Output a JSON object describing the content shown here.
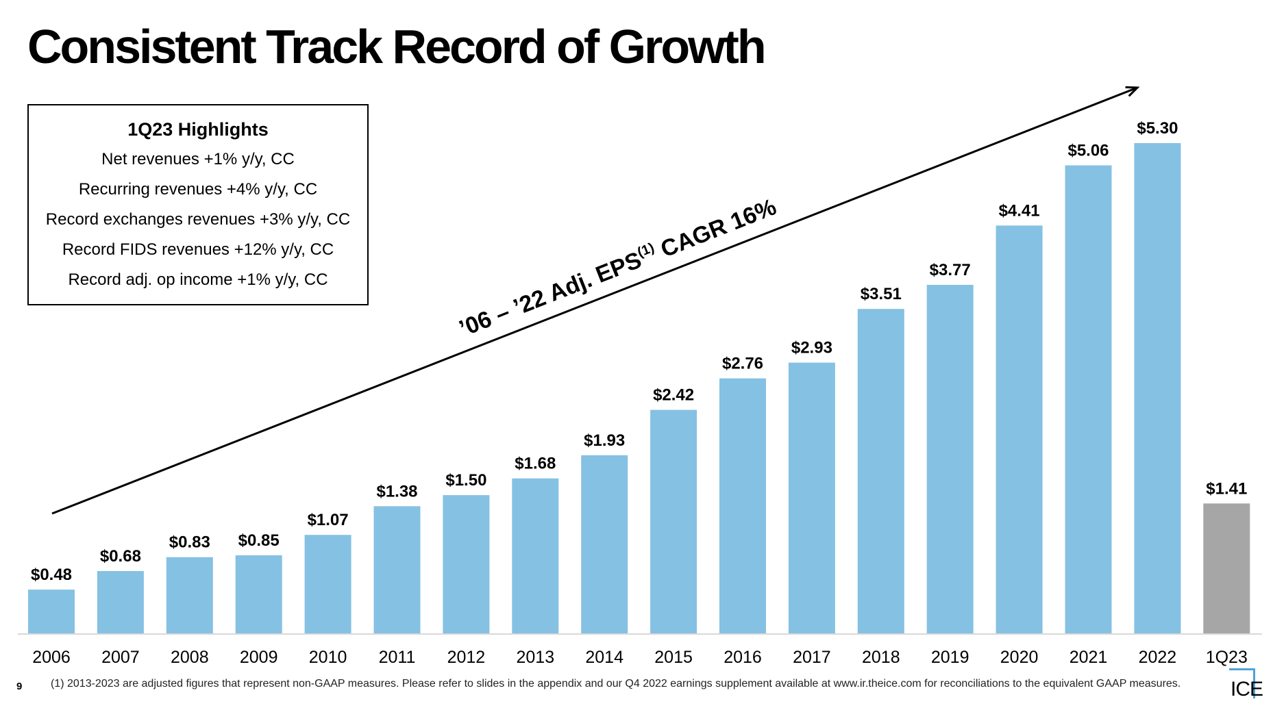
{
  "title": "Consistent Track Record of Growth",
  "highlights": {
    "title": "1Q23 Highlights",
    "items": [
      "Net revenues +1% y/y, CC",
      "Recurring revenues +4% y/y, CC",
      "Record exchanges revenues +3% y/y, CC",
      "Record FIDS revenues +12% y/y, CC",
      "Record adj. op income +1% y/y, CC"
    ]
  },
  "chart_data": {
    "type": "bar",
    "categories": [
      "2006",
      "2007",
      "2008",
      "2009",
      "2010",
      "2011",
      "2012",
      "2013",
      "2014",
      "2015",
      "2016",
      "2017",
      "2018",
      "2019",
      "2020",
      "2021",
      "2022",
      "1Q23"
    ],
    "values": [
      0.48,
      0.68,
      0.83,
      0.85,
      1.07,
      1.38,
      1.5,
      1.68,
      1.93,
      2.42,
      2.76,
      2.93,
      3.51,
      3.77,
      4.41,
      5.06,
      5.3,
      1.41
    ],
    "labels": [
      "$0.48",
      "$0.68",
      "$0.83",
      "$0.85",
      "$1.07",
      "$1.38",
      "$1.50",
      "$1.68",
      "$1.93",
      "$2.42",
      "$2.76",
      "$2.93",
      "$3.51",
      "$3.77",
      "$4.41",
      "$5.06",
      "$5.30",
      "$1.41"
    ],
    "colors": {
      "annual": "#85c1e3",
      "quarter": "#a6a6a6"
    },
    "annotation": {
      "main": "’06 – ’22 Adj. EPS",
      "sup": "(1)",
      "tail": " CAGR 16%"
    },
    "ylim": [
      0,
      5.3
    ],
    "grid": false,
    "legend": "none"
  },
  "page_number": "9",
  "footnote": "(1) 2013-2023 are adjusted figures that represent non-GAAP measures. Please refer to slides in the appendix and our Q4 2022 earnings supplement available at www.ir.theice.com for reconciliations to the equivalent GAAP measures.",
  "logo": {
    "text": "ICE",
    "icon": "ice-logo-icon",
    "color": "#4fa3d8"
  }
}
